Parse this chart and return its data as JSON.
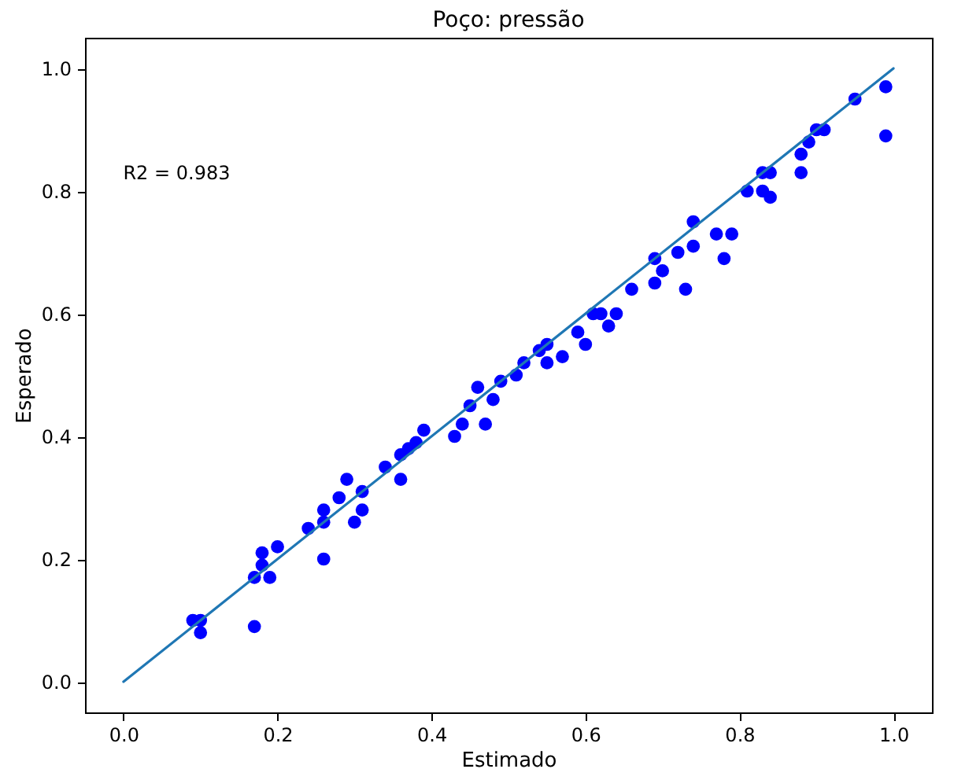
{
  "chart_data": {
    "type": "scatter",
    "title": "Poço: pressão",
    "xlabel": "Estimado",
    "ylabel": "Esperado",
    "annotations": [
      "R2 = 0.983"
    ],
    "xlim": [
      -0.05,
      1.05
    ],
    "ylim": [
      -0.05,
      1.05
    ],
    "xticks": [
      {
        "value": 0,
        "label": "0.0"
      },
      0.2,
      0.4,
      0.6,
      0.8,
      {
        "value": 1,
        "label": "1.0"
      }
    ],
    "yticks": [
      {
        "value": 0,
        "label": "0.0"
      },
      0.2,
      0.4,
      0.6,
      0.8,
      {
        "value": 1,
        "label": "1.0"
      }
    ],
    "grid": false,
    "series": [
      {
        "marker": "circle",
        "color": "#0000ff",
        "x": [
          0.09,
          0.1,
          0.1,
          0.17,
          0.17,
          0.18,
          0.18,
          0.19,
          0.2,
          0.26,
          0.24,
          0.26,
          0.26,
          0.28,
          0.29,
          0.3,
          0.31,
          0.31,
          0.34,
          0.36,
          0.36,
          0.37,
          0.38,
          0.39,
          0.43,
          0.44,
          0.45,
          0.46,
          0.47,
          0.48,
          0.49,
          0.51,
          0.52,
          0.54,
          0.55,
          0.55,
          0.57,
          0.59,
          0.6,
          0.61,
          0.62,
          0.63,
          0.64,
          0.66,
          0.69,
          0.69,
          0.7,
          0.72,
          0.73,
          0.74,
          0.74,
          0.77,
          0.78,
          0.79,
          0.81,
          0.83,
          0.83,
          0.84,
          0.84,
          0.88,
          0.88,
          0.89,
          0.9,
          0.91,
          0.95,
          0.99,
          0.99
        ],
        "values": [
          0.1,
          0.1,
          0.08,
          0.09,
          0.17,
          0.21,
          0.19,
          0.17,
          0.22,
          0.2,
          0.25,
          0.26,
          0.28,
          0.3,
          0.33,
          0.26,
          0.28,
          0.31,
          0.35,
          0.33,
          0.37,
          0.38,
          0.39,
          0.41,
          0.4,
          0.42,
          0.45,
          0.48,
          0.42,
          0.46,
          0.49,
          0.5,
          0.52,
          0.54,
          0.55,
          0.52,
          0.53,
          0.57,
          0.55,
          0.6,
          0.6,
          0.58,
          0.6,
          0.64,
          0.69,
          0.65,
          0.67,
          0.7,
          0.64,
          0.71,
          0.75,
          0.73,
          0.69,
          0.73,
          0.8,
          0.8,
          0.83,
          0.79,
          0.83,
          0.83,
          0.86,
          0.88,
          0.9,
          0.9,
          0.95,
          0.97,
          0.89
        ]
      },
      {
        "type": "line",
        "marker": "none",
        "color": "#1f77b4",
        "x": [
          0,
          1
        ],
        "values": [
          0,
          1
        ]
      }
    ]
  }
}
